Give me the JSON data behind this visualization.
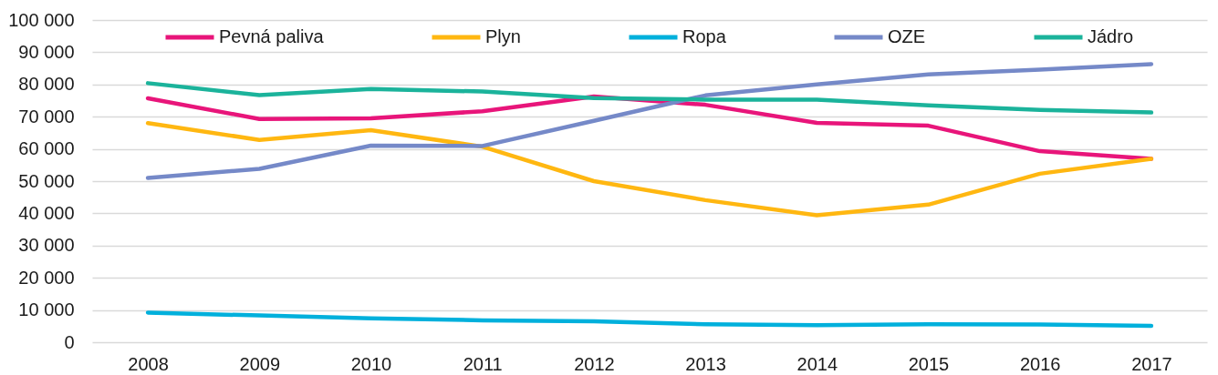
{
  "chart_data": {
    "type": "line",
    "categories": [
      "2008",
      "2009",
      "2010",
      "2011",
      "2012",
      "2013",
      "2014",
      "2015",
      "2016",
      "2017"
    ],
    "series": [
      {
        "name": "Pevná paliva",
        "color": "#e8157a",
        "values": [
          75700,
          69300,
          69500,
          71700,
          76300,
          73700,
          68100,
          67200,
          59300,
          56900
        ]
      },
      {
        "name": "Plyn",
        "color": "#ffb711",
        "values": [
          68000,
          62800,
          65800,
          60700,
          50000,
          44100,
          39400,
          42700,
          52300,
          56900
        ]
      },
      {
        "name": "Ropa",
        "color": "#00b0dc",
        "values": [
          9200,
          8300,
          7400,
          6800,
          6500,
          5600,
          5300,
          5600,
          5500,
          5100
        ]
      },
      {
        "name": "OZE",
        "color": "#7589c8",
        "values": [
          51000,
          53800,
          61000,
          60900,
          68700,
          76600,
          80000,
          83100,
          84600,
          86300
        ]
      },
      {
        "name": "Jádro",
        "color": "#1bb39b",
        "values": [
          80400,
          76700,
          78600,
          77800,
          75800,
          75300,
          75300,
          73500,
          72100,
          71300
        ]
      }
    ],
    "ylim": [
      0,
      100000
    ],
    "yticks": [
      0,
      {
        "value": 10000,
        "label": "10 000"
      },
      {
        "value": 20000,
        "label": "20 000"
      },
      {
        "value": 30000,
        "label": "30 000"
      },
      {
        "value": 40000,
        "label": "40 000"
      },
      {
        "value": 50000,
        "label": "50 000"
      },
      {
        "value": 60000,
        "label": "60 000"
      },
      {
        "value": 70000,
        "label": "70 000"
      },
      {
        "value": 80000,
        "label": "80 000"
      },
      {
        "value": 90000,
        "label": "90 000"
      },
      {
        "value": 100000,
        "label": "100 000"
      }
    ],
    "grid": "y",
    "legend": "top",
    "line_style": "solid"
  }
}
